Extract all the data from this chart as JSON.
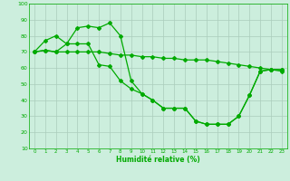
{
  "xlabel": "Humidité relative (%)",
  "bg_color": "#cceedd",
  "grid_color": "#aaccbb",
  "line_color": "#00aa00",
  "marker": "D",
  "markersize": 2,
  "linewidth": 0.9,
  "xlim": [
    -0.5,
    23.5
  ],
  "ylim": [
    10,
    100
  ],
  "yticks": [
    10,
    20,
    30,
    40,
    50,
    60,
    70,
    80,
    90,
    100
  ],
  "xticks": [
    0,
    1,
    2,
    3,
    4,
    5,
    6,
    7,
    8,
    9,
    10,
    11,
    12,
    13,
    14,
    15,
    16,
    17,
    18,
    19,
    20,
    21,
    22,
    23
  ],
  "series": [
    [
      70,
      71,
      70,
      70,
      70,
      70,
      70,
      69,
      68,
      68,
      67,
      67,
      66,
      66,
      65,
      65,
      65,
      64,
      63,
      62,
      61,
      60,
      59,
      58
    ],
    [
      70,
      77,
      80,
      75,
      85,
      86,
      85,
      88,
      80,
      52,
      44,
      40,
      35,
      35,
      35,
      27,
      25,
      25,
      25,
      30,
      43,
      58,
      59,
      59
    ],
    [
      70,
      71,
      70,
      75,
      75,
      75,
      62,
      61,
      52,
      47,
      44,
      40,
      35,
      35,
      35,
      27,
      25,
      25,
      25,
      30,
      43,
      58,
      59,
      59
    ]
  ]
}
